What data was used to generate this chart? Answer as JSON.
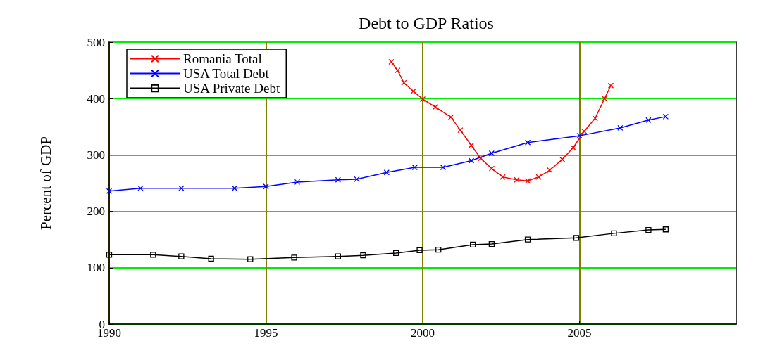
{
  "chart_data": {
    "type": "line",
    "title": "Debt to GDP Ratios",
    "ylabel": "Percent of GDP",
    "xlim": [
      1990,
      2010
    ],
    "xticks": [
      1990,
      1995,
      2000,
      2005
    ],
    "ylim": [
      0,
      500
    ],
    "yticks": [
      0,
      100,
      200,
      300,
      400,
      500
    ],
    "grid": true,
    "legend": "top left",
    "series": [
      {
        "name": "Romania Total",
        "color": "#ff0000",
        "marker": "cross",
        "x": [
          1999.0,
          1999.2,
          1999.4,
          1999.7,
          2000.0,
          2000.4,
          2000.9,
          2001.2,
          2001.55,
          2001.85,
          2002.2,
          2002.55,
          2003.0,
          2003.35,
          2003.7,
          2004.05,
          2004.45,
          2004.8,
          2005.15,
          2005.5,
          2005.8,
          2006.0
        ],
        "values": [
          465,
          450,
          428,
          413,
          399,
          385,
          367,
          344,
          317,
          294,
          276,
          261,
          256,
          254,
          261,
          273,
          292,
          313,
          342,
          365,
          400,
          423
        ]
      },
      {
        "name": "USA Total Debt",
        "color": "#0000ff",
        "marker": "cross",
        "x": [
          1990,
          1991,
          1992.3,
          1994,
          1995,
          1996,
          1997.3,
          1997.9,
          1998.85,
          1999.75,
          2000.65,
          2001.55,
          2002.2,
          2003.35,
          2005.0,
          2006.3,
          2007.2,
          2007.75
        ],
        "values": [
          236,
          241,
          241,
          241,
          244,
          252,
          256,
          257,
          269,
          278,
          278,
          290,
          303,
          322,
          334,
          348,
          362,
          368
        ]
      },
      {
        "name": "USA Private Debt",
        "color": "#000000",
        "marker": "square",
        "x": [
          1990,
          1991.4,
          1992.3,
          1993.25,
          1994.5,
          1995.9,
          1997.3,
          1998.1,
          1999.15,
          1999.9,
          2000.5,
          2001.6,
          2002.2,
          2003.35,
          2004.9,
          2006.1,
          2007.2,
          2007.75
        ],
        "values": [
          123,
          123,
          120,
          116,
          115,
          118,
          120,
          122,
          126,
          131,
          132,
          141,
          142,
          150,
          153,
          161,
          167,
          168
        ]
      }
    ]
  }
}
